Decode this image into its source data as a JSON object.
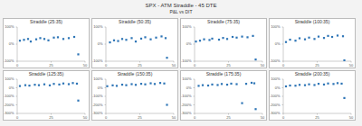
{
  "title": "SPX - ATM Straddle - 45 DTE",
  "subtitle": "P&L vs DIT",
  "chart_data": [
    {
      "type": "scatter",
      "title": "Straddle (25:35)",
      "color": "#2e75b6",
      "marker": "square",
      "grid": false,
      "x": [
        2,
        5,
        8,
        10,
        14,
        17,
        20,
        23,
        27,
        30,
        34,
        38,
        42,
        45
      ],
      "values": [
        20,
        25,
        30,
        15,
        28,
        35,
        30,
        22,
        38,
        40,
        30,
        35,
        42,
        -60
      ],
      "xlim": [
        0,
        50
      ],
      "xticks": [
        0,
        25,
        50
      ],
      "ylim": [
        -100,
        100
      ],
      "yticks": [
        {
          "value": -100,
          "label": "-100%"
        },
        {
          "value": 0,
          "label": "0%"
        },
        {
          "value": 100,
          "label": "100%"
        }
      ]
    },
    {
      "type": "scatter",
      "title": "Straddle (50:35)",
      "color": "#2e75b6",
      "marker": "square",
      "grid": false,
      "x": [
        3,
        6,
        9,
        12,
        15,
        19,
        22,
        26,
        29,
        33,
        37,
        41,
        44,
        45
      ],
      "values": [
        10,
        22,
        18,
        30,
        25,
        35,
        15,
        32,
        40,
        28,
        38,
        45,
        35,
        -80
      ],
      "xlim": [
        0,
        50
      ],
      "xticks": [
        0,
        25,
        50
      ],
      "ylim": [
        -100,
        100
      ],
      "yticks": [
        {
          "value": -100,
          "label": "-100%"
        },
        {
          "value": 0,
          "label": "0%"
        },
        {
          "value": 100,
          "label": "100%"
        }
      ]
    },
    {
      "type": "scatter",
      "title": "Straddle (75:35)",
      "color": "#2e75b6",
      "marker": "square",
      "grid": false,
      "x": [
        1,
        4,
        7,
        11,
        13,
        18,
        21,
        24,
        28,
        31,
        35,
        39,
        43,
        45
      ],
      "values": [
        15,
        20,
        28,
        24,
        32,
        26,
        36,
        30,
        42,
        38,
        44,
        40,
        48,
        -90
      ],
      "xlim": [
        0,
        50
      ],
      "xticks": [
        0,
        25,
        50
      ],
      "ylim": [
        -100,
        100
      ],
      "yticks": [
        {
          "value": -100,
          "label": "-100%"
        },
        {
          "value": 0,
          "label": "0%"
        },
        {
          "value": 100,
          "label": "100%"
        }
      ]
    },
    {
      "type": "scatter",
      "title": "Straddle (100:35)",
      "color": "#2e75b6",
      "marker": "square",
      "grid": false,
      "x": [
        2,
        5,
        9,
        12,
        16,
        19,
        23,
        26,
        30,
        33,
        36,
        40,
        44,
        45
      ],
      "values": [
        12,
        26,
        20,
        34,
        28,
        38,
        30,
        44,
        36,
        48,
        42,
        50,
        46,
        -95
      ],
      "xlim": [
        0,
        50
      ],
      "xticks": [
        0,
        25,
        50
      ],
      "ylim": [
        -100,
        100
      ],
      "yticks": [
        {
          "value": -100,
          "label": "-100%"
        },
        {
          "value": 0,
          "label": "0%"
        },
        {
          "value": 100,
          "label": "100%"
        }
      ]
    },
    {
      "type": "scatter",
      "title": "Straddle (125:35)",
      "color": "#2e75b6",
      "marker": "square",
      "grid": false,
      "x": [
        2,
        6,
        9,
        13,
        16,
        20,
        24,
        27,
        31,
        34,
        38,
        41,
        44,
        45
      ],
      "values": [
        20,
        30,
        25,
        35,
        30,
        40,
        28,
        45,
        38,
        50,
        42,
        55,
        48,
        -150
      ],
      "xlim": [
        0,
        50
      ],
      "xticks": [
        0,
        25,
        50
      ],
      "ylim": [
        -300,
        100
      ],
      "yticks": [
        {
          "value": -300,
          "label": "-300%"
        },
        {
          "value": -200,
          "label": "-200%"
        },
        {
          "value": -100,
          "label": "-100%"
        },
        {
          "value": 0,
          "label": "0%"
        },
        {
          "value": 100,
          "label": "100%"
        }
      ]
    },
    {
      "type": "scatter",
      "title": "Straddle (150:35)",
      "color": "#2e75b6",
      "marker": "square",
      "grid": false,
      "x": [
        1,
        5,
        8,
        12,
        15,
        19,
        22,
        26,
        29,
        33,
        36,
        40,
        43,
        45
      ],
      "values": [
        18,
        28,
        22,
        36,
        30,
        42,
        34,
        46,
        40,
        52,
        44,
        56,
        50,
        -200
      ],
      "xlim": [
        0,
        50
      ],
      "xticks": [
        0,
        25,
        50
      ],
      "ylim": [
        -300,
        100
      ],
      "yticks": [
        {
          "value": -300,
          "label": "-300%"
        },
        {
          "value": -200,
          "label": "-200%"
        },
        {
          "value": -100,
          "label": "-100%"
        },
        {
          "value": 0,
          "label": "0%"
        },
        {
          "value": 100,
          "label": "100%"
        }
      ]
    },
    {
      "type": "scatter",
      "title": "Straddle (175:35)",
      "color": "#2e75b6",
      "marker": "square",
      "grid": false,
      "x": [
        3,
        6,
        10,
        13,
        17,
        20,
        24,
        27,
        31,
        35,
        38,
        42,
        44,
        45
      ],
      "values": [
        22,
        30,
        26,
        38,
        32,
        44,
        36,
        48,
        42,
        -180,
        46,
        58,
        52,
        -250
      ],
      "xlim": [
        0,
        50
      ],
      "xticks": [
        0,
        25,
        50
      ],
      "ylim": [
        -300,
        100
      ],
      "yticks": [
        {
          "value": -300,
          "label": "-300%"
        },
        {
          "value": -200,
          "label": "-200%"
        },
        {
          "value": -100,
          "label": "-100%"
        },
        {
          "value": 0,
          "label": "0%"
        },
        {
          "value": 100,
          "label": "100%"
        }
      ]
    },
    {
      "type": "scatter",
      "title": "Straddle (200:35)",
      "color": "#2e75b6",
      "marker": "square",
      "grid": false,
      "x": [
        2,
        5,
        9,
        12,
        16,
        19,
        23,
        26,
        30,
        33,
        37,
        40,
        43,
        45
      ],
      "values": [
        16,
        26,
        24,
        34,
        30,
        40,
        32,
        46,
        38,
        50,
        44,
        54,
        48,
        -120
      ],
      "xlim": [
        0,
        50
      ],
      "xticks": [
        0,
        25,
        50
      ],
      "ylim": [
        -300,
        100
      ],
      "yticks": [
        {
          "value": -300,
          "label": "-300%"
        },
        {
          "value": -200,
          "label": "-200%"
        },
        {
          "value": -100,
          "label": "-100%"
        },
        {
          "value": 0,
          "label": "0%"
        },
        {
          "value": 100,
          "label": "100%"
        }
      ]
    }
  ]
}
